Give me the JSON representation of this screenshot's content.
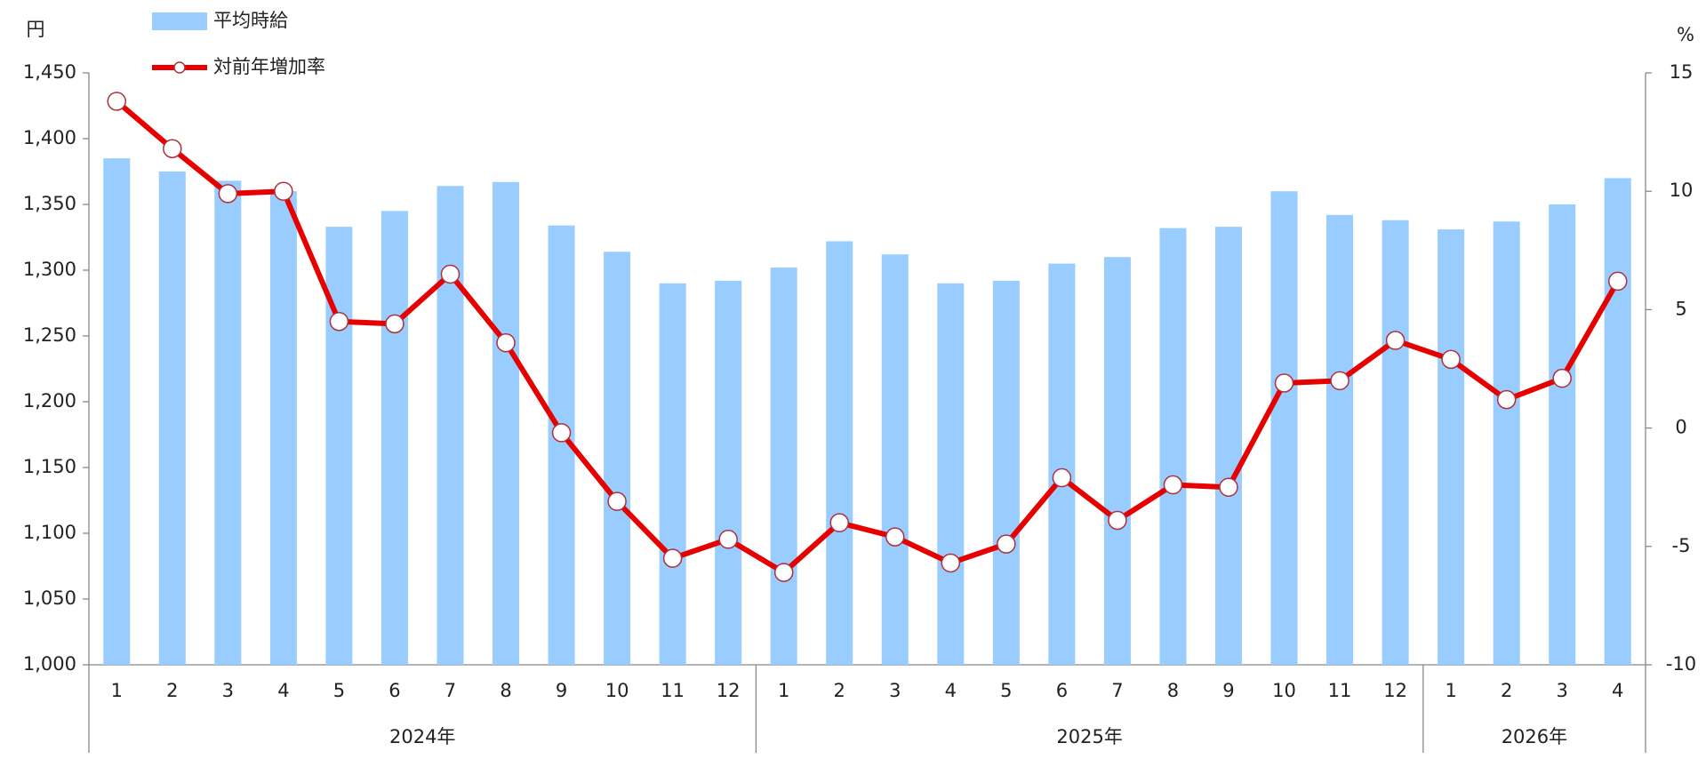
{
  "chart_data": {
    "type": "bar",
    "ylabel": "円",
    "y2label": "%",
    "groups": [
      {
        "label": "2024年",
        "categories": [
          "1",
          "2",
          "3",
          "4",
          "5",
          "6",
          "7",
          "8",
          "9",
          "10",
          "11",
          "12"
        ]
      },
      {
        "label": "2025年",
        "categories": [
          "1",
          "2",
          "3",
          "4",
          "5",
          "6",
          "7",
          "8",
          "9",
          "10",
          "11",
          "12"
        ]
      },
      {
        "label": "2026年",
        "categories": [
          "1",
          "2",
          "3",
          "4"
        ]
      }
    ],
    "series": [
      {
        "name": "平均時給",
        "type": "bar",
        "color": "#99ccff",
        "values": [
          1385,
          1375,
          1368,
          1360,
          1333,
          1345,
          1364,
          1367,
          1334,
          1314,
          1290,
          1292,
          1302,
          1322,
          1312,
          1290,
          1292,
          1305,
          1310,
          1332,
          1333,
          1360,
          1342,
          1338,
          1331,
          1337,
          1350,
          1370
        ]
      },
      {
        "name": "対前年増加率",
        "type": "line",
        "axis": "y2",
        "color": "#e60000",
        "values": [
          13.8,
          11.8,
          9.9,
          10.0,
          4.5,
          4.4,
          6.5,
          3.6,
          -0.2,
          -3.1,
          -5.5,
          -4.7,
          -6.1,
          -4.0,
          -4.6,
          -5.7,
          -4.9,
          -2.1,
          -3.9,
          -2.4,
          -2.5,
          1.9,
          2.0,
          3.7,
          2.9,
          1.2,
          2.1,
          6.2
        ]
      }
    ],
    "ylim": [
      1000,
      1450
    ],
    "yticks": [
      {
        "value": 1000,
        "label": "1,000"
      },
      {
        "value": 1050,
        "label": "1,050"
      },
      {
        "value": 1100,
        "label": "1,100"
      },
      {
        "value": 1150,
        "label": "1,150"
      },
      {
        "value": 1200,
        "label": "1,200"
      },
      {
        "value": 1250,
        "label": "1,250"
      },
      {
        "value": 1300,
        "label": "1,300"
      },
      {
        "value": 1350,
        "label": "1,350"
      },
      {
        "value": 1400,
        "label": "1,400"
      },
      {
        "value": 1450,
        "label": "1,450"
      }
    ],
    "y2lim": [
      -10,
      15
    ],
    "y2ticks": [
      -10,
      -5,
      0,
      5,
      10,
      15
    ],
    "grid": false
  }
}
